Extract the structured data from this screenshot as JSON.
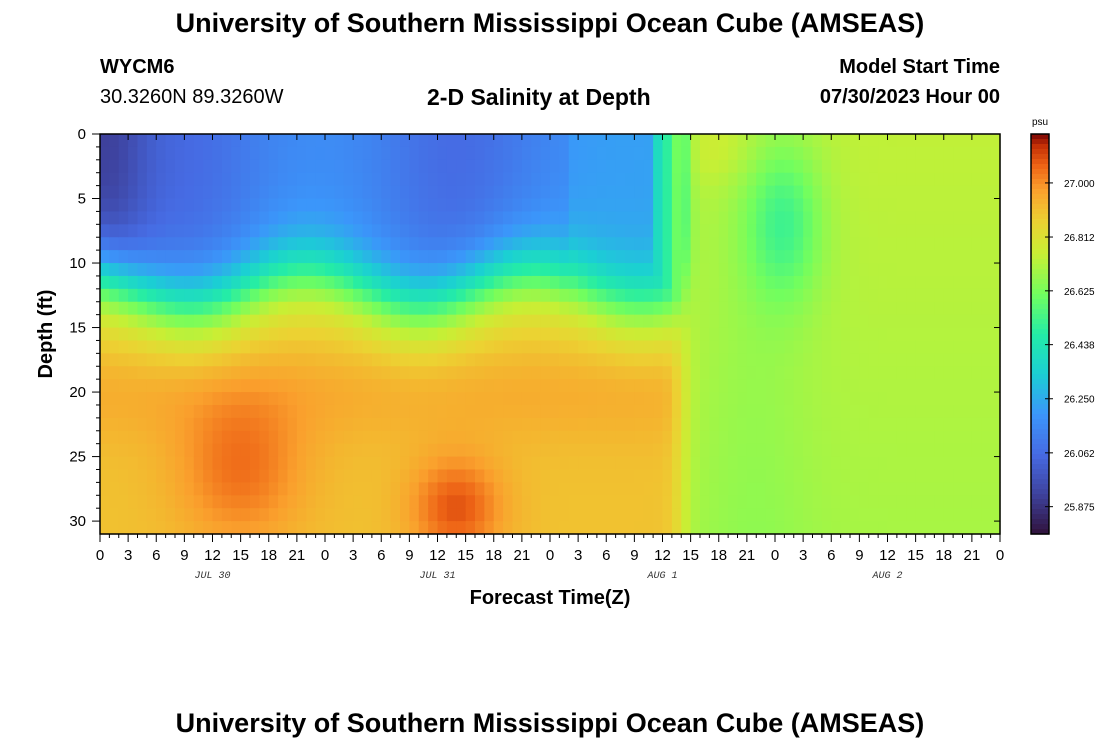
{
  "page": {
    "title": "University of Southern Mississippi Ocean Cube (AMSEAS)",
    "footer_title": "University of Southern Mississippi Ocean Cube (AMSEAS)",
    "station_id": "WYCM6",
    "coords": "30.3260N  89.3260W",
    "plot_title": "2-D Salinity at Depth",
    "model_start_label": "Model Start Time",
    "model_start_value": "07/30/2023 Hour 00"
  },
  "chart_data": {
    "type": "heatmap",
    "title": "2-D Salinity at Depth",
    "xlabel": "Forecast Time(Z)",
    "ylabel": "Depth (ft)",
    "x_ticks": [
      "0",
      "3",
      "6",
      "9",
      "12",
      "15",
      "18",
      "21",
      "0",
      "3",
      "6",
      "9",
      "12",
      "15",
      "18",
      "21",
      "0",
      "3",
      "6",
      "9",
      "12",
      "15",
      "18",
      "21",
      "0",
      "3",
      "6",
      "9",
      "12",
      "15",
      "18",
      "21",
      "0"
    ],
    "date_labels": [
      "JUL 30",
      "JUL 31",
      "AUG 1",
      "AUG 2"
    ],
    "y_ticks": [
      "0",
      "5",
      "10",
      "15",
      "20",
      "25",
      "30"
    ],
    "xlim_hours": [
      0,
      96
    ],
    "ylim_ft": [
      0,
      31
    ],
    "colorbar": {
      "unit": "psu",
      "range": [
        25.78,
        27.17
      ],
      "tick_labels": [
        "27.000",
        "26.812",
        "26.625",
        "26.438",
        "26.250",
        "26.062",
        "25.875"
      ],
      "tick_values": [
        27.0,
        26.812,
        26.625,
        26.438,
        26.25,
        26.062,
        25.875
      ]
    },
    "description_of_field": "Fresh surface layer (~25.8-26.2 psu) above ~10 ft and salty bottom layer (~26.9-27.1 psu) below ~17 ft until hour ~62, after which water column becomes well mixed (~26.6-26.8 psu).",
    "front_hour": 62,
    "halocline_depth_ft": 12
  }
}
